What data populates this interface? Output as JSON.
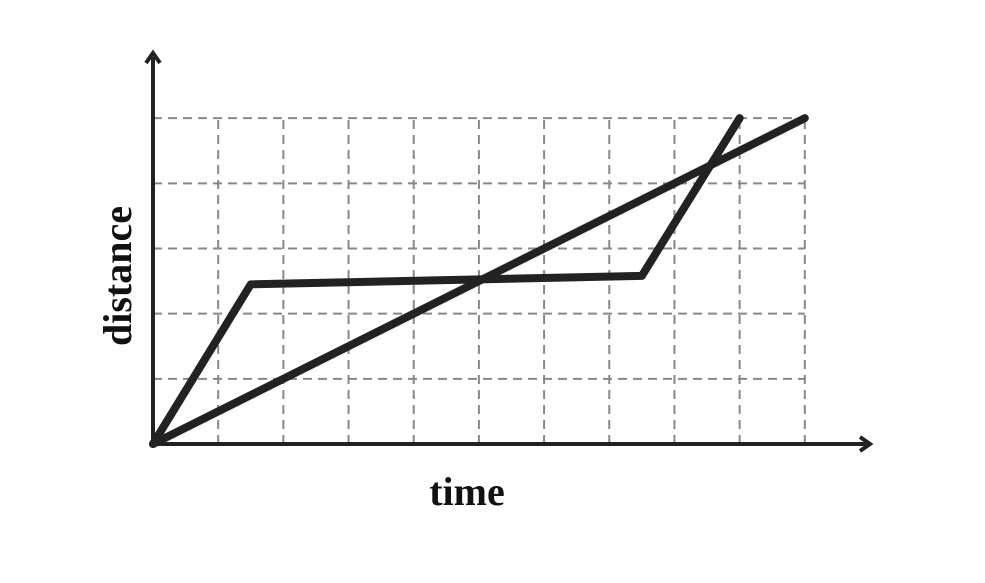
{
  "chart_data": {
    "type": "line",
    "x_label": "time",
    "y_label": "distance",
    "series": [
      {
        "color": "#222222",
        "x": [
          0,
          10
        ],
        "values": [
          0,
          5
        ]
      },
      {
        "color": "#222222",
        "x": [
          0,
          1.5,
          7.5,
          9
        ],
        "values": [
          0,
          2.45,
          2.58,
          5
        ]
      }
    ],
    "xlim": [
      0,
      11
    ],
    "ylim": [
      0,
      6
    ],
    "xticks": [
      1,
      2,
      3,
      4,
      5,
      6,
      7,
      8,
      9,
      10
    ],
    "yticks": [
      1,
      2,
      3,
      4,
      5
    ],
    "grid": true,
    "grid_color": "#888888",
    "axis_color": "#222222"
  }
}
